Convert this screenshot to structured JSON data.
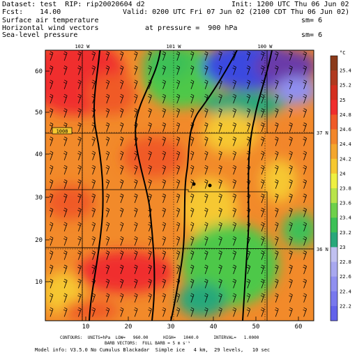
{
  "header": {
    "line1_left": "Dataset: test  RIP: rip20020604 d2",
    "line1_right": "Init: 1200 UTC Thu 06 Jun 02",
    "line2_left": "Fcst:    14.00",
    "line2_right": "Valid: 0200 UTC Fri 07 Jun 02 (2100 CDT Thu 06 Jun 02)",
    "field1": "Surface air temperature",
    "field1_sm": "sm= 6",
    "field2": "Horizontal wind vectors",
    "field2_pressure": "at pressure =  900 hPa",
    "field3": "Sea-level pressure",
    "field3_sm": "sm= 6"
  },
  "map": {
    "lon_labels": [
      "102 W",
      "101 W",
      "100 W"
    ],
    "lat_labels": [
      "37 N",
      "36 N"
    ],
    "y_ticks": [
      "60",
      "50",
      "40",
      "30",
      "20",
      "10"
    ],
    "x_ticks": [
      "10",
      "20",
      "30",
      "40",
      "50",
      "60"
    ],
    "contour_label": "1008",
    "colorbar_unit": "°C",
    "colorbar_values": [
      "25.4",
      "25.2",
      "25",
      "24.8",
      "24.6",
      "24.4",
      "24.2",
      "24",
      "23.8",
      "23.6",
      "23.4",
      "23.2",
      "23",
      "22.8",
      "22.6",
      "22.4",
      "22.2"
    ],
    "colorbar_colors": [
      "#8b3a1a",
      "#b03a20",
      "#d43020",
      "#f02e2e",
      "#f05a28",
      "#f2862a",
      "#f4a62c",
      "#f6c830",
      "#eef040",
      "#b8e44a",
      "#6ed04a",
      "#3cc056",
      "#28a87a",
      "#c0c0f0",
      "#a8a8f0",
      "#9090f0",
      "#7878ee",
      "#6262ea"
    ],
    "colors": {
      "red": "#f02e2e",
      "orange": "#f28a2a",
      "yellow": "#f6c830",
      "green": "#4ec84a",
      "teal": "#28a87a",
      "blue": "#3a48e0",
      "purple": "#6a3aa8",
      "lavender": "#9090f0"
    }
  },
  "footer": {
    "line1": "CONTOURS:  UNITS=hPa  LOW=   960.00      HIGH=   1040.0      INTERVAL=   1.0000",
    "line2": "BARB VECTORS:  FULL BARB = 5 m s⁻¹",
    "model_info": "Model info: V3.5.0 No Cumulus Blackadar  Simple ice   4 km,  29 levels,   10 sec"
  }
}
